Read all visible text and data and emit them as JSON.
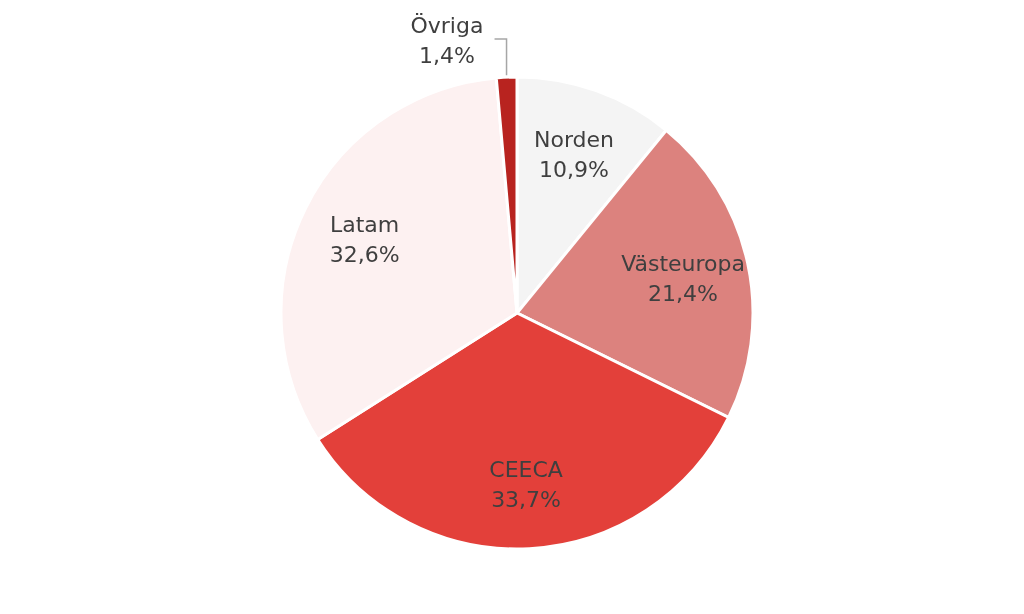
{
  "chart_data": {
    "type": "pie",
    "categories": [
      "Norden",
      "Västeuropa",
      "CEECA",
      "Latam",
      "Övriga"
    ],
    "values": [
      10.9,
      21.4,
      33.7,
      32.6,
      1.4
    ],
    "colors": [
      "#f4f4f4",
      "#dc827e",
      "#e3403a",
      "#fdf1f1",
      "#b8231f"
    ],
    "value_labels": [
      "10,9%",
      "21,4%",
      "33,7%",
      "32,6%",
      "1,4%"
    ]
  }
}
